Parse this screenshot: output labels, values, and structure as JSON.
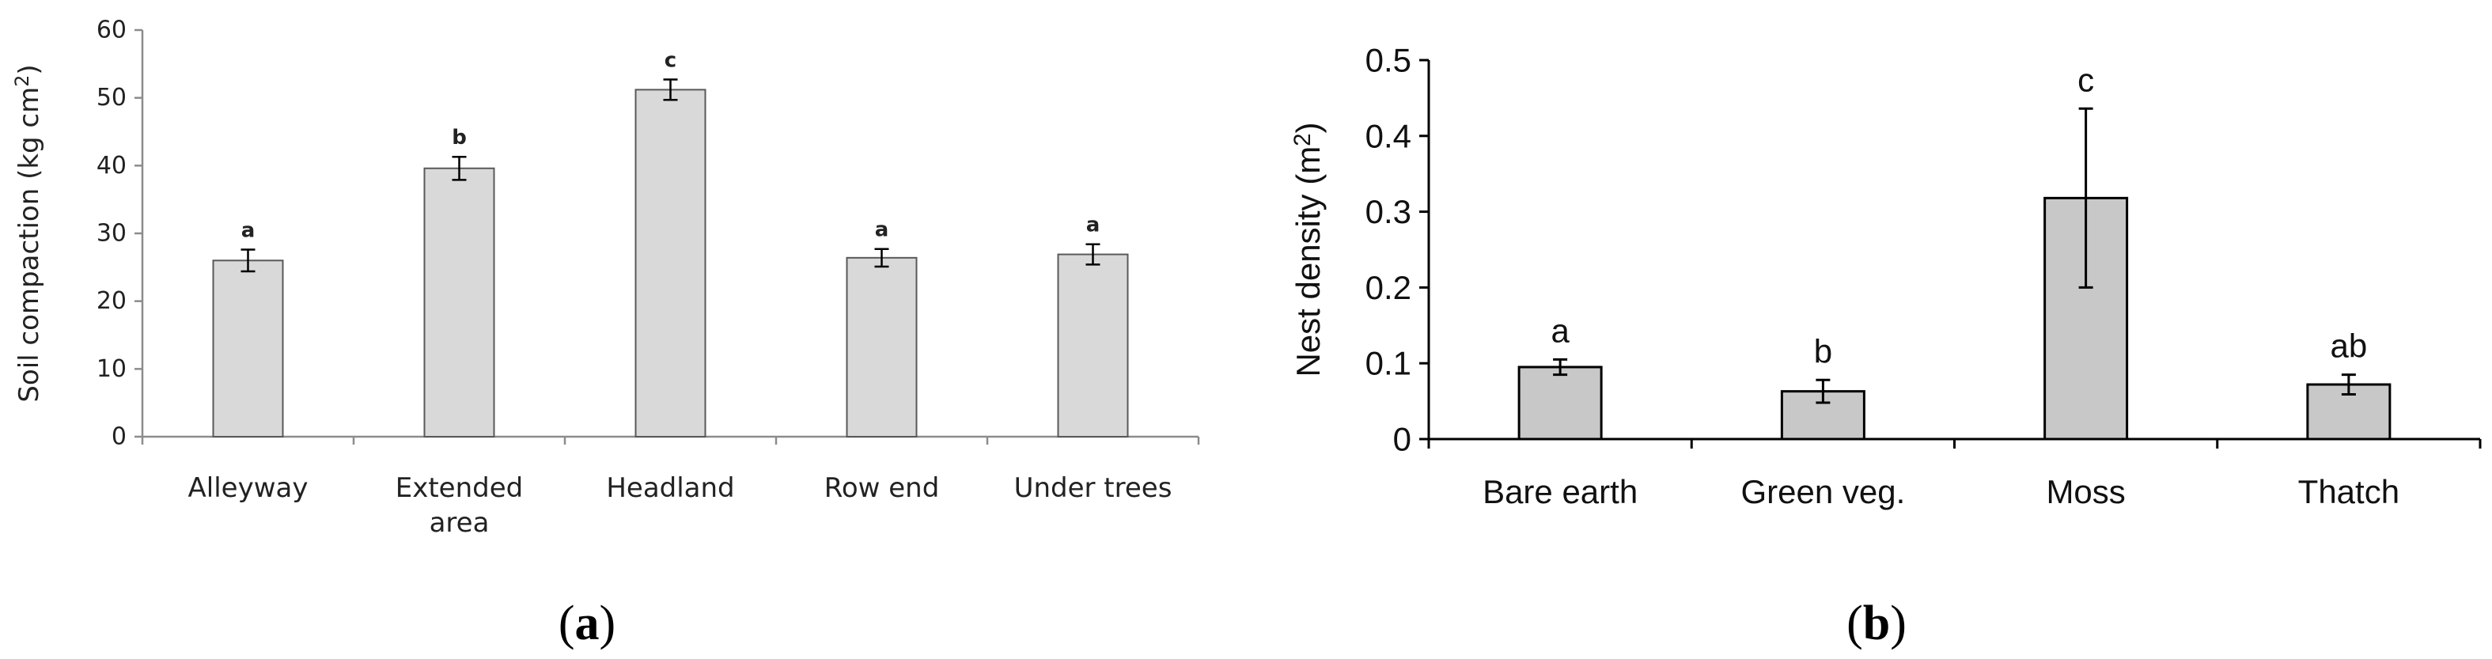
{
  "chart_data": [
    {
      "type": "bar",
      "panel": "(a)",
      "ylabel_text": "Soil compaction (kg cm",
      "ylabel_sup": "2",
      "ylabel_close": ")",
      "categories": [
        [
          "Alleyway"
        ],
        [
          "Extended",
          "area"
        ],
        [
          "Headland"
        ],
        [
          "Row end"
        ],
        [
          "Under trees"
        ]
      ],
      "values": [
        26,
        39.6,
        51.2,
        26.4,
        26.9
      ],
      "errors": [
        1.6,
        1.7,
        1.5,
        1.3,
        1.5
      ],
      "significance": [
        "a",
        "b",
        "c",
        "a",
        "a"
      ],
      "ylim": [
        0,
        60
      ],
      "yticks": [
        0,
        10,
        20,
        30,
        40,
        50,
        60
      ],
      "bar_fill": "#d9d9d9",
      "bar_stroke": "#595959",
      "axis_color": "#8c8c8c"
    },
    {
      "type": "bar",
      "panel": "(b)",
      "ylabel_text": "Nest density (m",
      "ylabel_sup": "2",
      "ylabel_close": ")",
      "categories": [
        [
          "Bare earth"
        ],
        [
          "Green veg."
        ],
        [
          "Moss"
        ],
        [
          "Thatch"
        ]
      ],
      "values": [
        0.095,
        0.063,
        0.318,
        0.072
      ],
      "errors": [
        0.01,
        0.015,
        0.118,
        0.013
      ],
      "significance": [
        "a",
        "b",
        "c",
        "ab"
      ],
      "ylim": [
        0,
        0.5
      ],
      "yticks": [
        "0",
        "0.1",
        "0.2",
        "0.3",
        "0.4",
        "0.5"
      ],
      "bar_fill": "#c8c8c8",
      "bar_stroke": "#000000",
      "axis_color": "#000000"
    }
  ]
}
